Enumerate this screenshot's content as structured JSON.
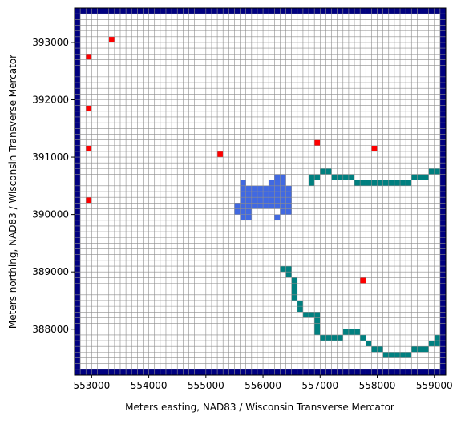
{
  "chart_data": {
    "type": "grid",
    "xlabel": "Meters easting, NAD83 / Wisconsin Transverse Mercator",
    "ylabel": "Meters northing, NAD83 / Wisconsin Transverse Mercator",
    "xlim": [
      552700,
      559200
    ],
    "ylim": [
      387200,
      393600
    ],
    "xticks": [
      553000,
      554000,
      555000,
      556000,
      557000,
      558000,
      559000
    ],
    "yticks": [
      388000,
      389000,
      390000,
      391000,
      392000,
      393000
    ],
    "grid_spacing": 100,
    "grid_color": "#8c8c8c",
    "boundary_color": "#000080",
    "series": [
      {
        "color": "#ff0000",
        "x": [
          553350,
          552950,
          552950,
          552950,
          552950,
          555250,
          556950,
          557950,
          557750
        ],
        "y": [
          393050,
          392750,
          391850,
          391150,
          390250,
          391050,
          391250,
          391150,
          388850
        ]
      },
      {
        "color": "#008080",
        "x": [
          556850,
          556850,
          556950,
          557050,
          557150,
          557250,
          557350,
          557450,
          557550,
          557650,
          557750,
          557850,
          557950,
          558050,
          558150,
          558250,
          558350,
          558450,
          558550,
          558650,
          558750,
          558850,
          558950,
          559050
        ],
        "y": [
          390550,
          390650,
          390650,
          390750,
          390750,
          390650,
          390650,
          390650,
          390650,
          390550,
          390550,
          390550,
          390550,
          390550,
          390550,
          390550,
          390550,
          390550,
          390550,
          390650,
          390650,
          390650,
          390750,
          390750
        ]
      },
      {
        "color": "#008080",
        "x": [
          556350,
          556450,
          556450,
          556550,
          556550,
          556550,
          556550,
          556650,
          556650,
          556750,
          556850,
          556950,
          556950,
          556950,
          556950,
          557050,
          557150,
          557250,
          557350,
          557450,
          557550,
          557650,
          557750,
          557850,
          557950,
          558050,
          558150,
          558250,
          558350,
          558450,
          558550,
          558650,
          558750,
          558850,
          558950,
          559050,
          559050
        ],
        "y": [
          389050,
          389050,
          388950,
          388850,
          388750,
          388650,
          388550,
          388450,
          388350,
          388250,
          388250,
          388250,
          388150,
          388050,
          387950,
          387850,
          387850,
          387850,
          387850,
          387950,
          387950,
          387950,
          387850,
          387750,
          387650,
          387650,
          387550,
          387550,
          387550,
          387550,
          387550,
          387650,
          387650,
          387650,
          387750,
          387750,
          387850
        ]
      },
      {
        "color": "#4169e1",
        "x": [
          556250,
          556350,
          555650,
          556150,
          556250,
          556350,
          555650,
          555750,
          555850,
          555950,
          556050,
          556150,
          556250,
          556350,
          556450,
          555650,
          555750,
          555850,
          555950,
          556050,
          556150,
          556250,
          556350,
          556450,
          555650,
          555750,
          555850,
          555950,
          556050,
          556150,
          556250,
          556350,
          556450,
          555550,
          555650,
          555750,
          555850,
          555950,
          556050,
          556150,
          556250,
          556350,
          556450,
          555550,
          555650,
          555750,
          556350,
          556450,
          555650,
          555750,
          556250
        ],
        "y": [
          390650,
          390650,
          390550,
          390550,
          390550,
          390550,
          390450,
          390450,
          390450,
          390450,
          390450,
          390450,
          390450,
          390450,
          390450,
          390350,
          390350,
          390350,
          390350,
          390350,
          390350,
          390350,
          390350,
          390350,
          390250,
          390250,
          390250,
          390250,
          390250,
          390250,
          390250,
          390250,
          390250,
          390150,
          390150,
          390150,
          390150,
          390150,
          390150,
          390150,
          390150,
          390150,
          390150,
          390050,
          390050,
          390050,
          390050,
          390050,
          389950,
          389950,
          389950
        ]
      }
    ]
  }
}
